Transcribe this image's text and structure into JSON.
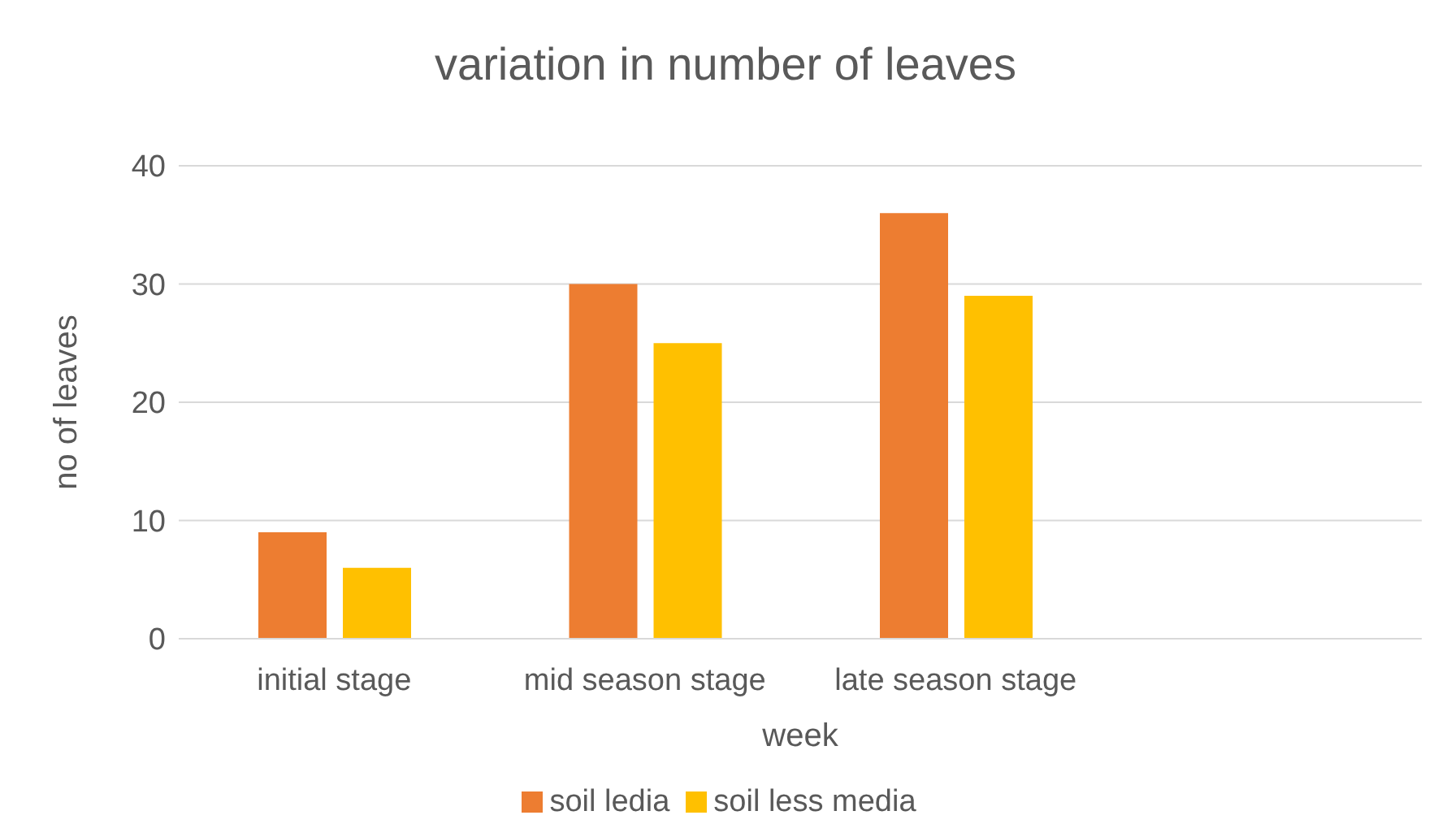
{
  "chart_data": {
    "type": "bar",
    "title": "variation in number of leaves",
    "xlabel": "week",
    "ylabel": "no of leaves",
    "categories": [
      "initial stage",
      "mid season stage",
      "late season stage",
      null
    ],
    "series": [
      {
        "name": "soil ledia",
        "color": "#ed7d31",
        "values": [
          9,
          30,
          36,
          null
        ]
      },
      {
        "name": "soil less media",
        "color": "#ffc000",
        "values": [
          6,
          25,
          29,
          null
        ]
      }
    ],
    "ylim": [
      0,
      40
    ],
    "yticks": [
      0,
      10,
      20,
      30,
      40
    ],
    "grid": "y",
    "legend": "bottom"
  }
}
